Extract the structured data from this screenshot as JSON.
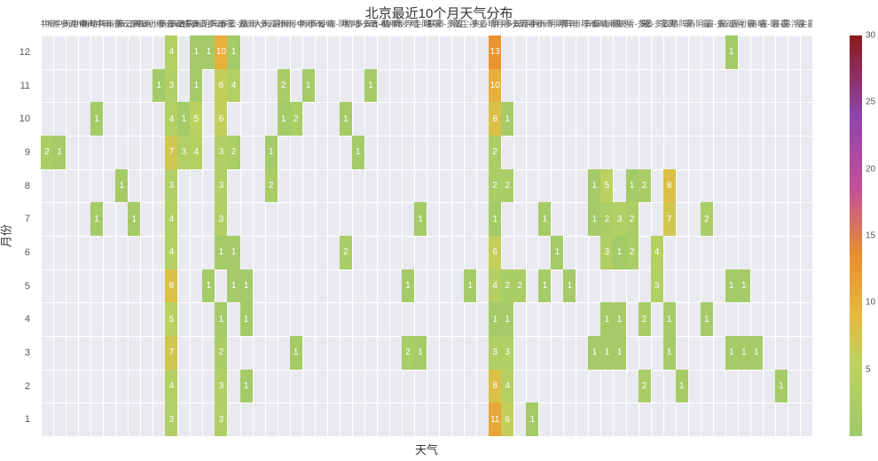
{
  "title": "北京最近10个月天气分布",
  "x_axis": {
    "label": "天气",
    "n_cols": 62,
    "categories": [
      "中雨",
      "中雨-多云",
      "中雨-小雨",
      "中雨-晴",
      "中雨-阵雨",
      "中雨-阴",
      "多云",
      "多云-中雨",
      "多云-小雨",
      "多云-小雨-多云",
      "多云-晴",
      "多云-暴雨",
      "多云-阴",
      "多云-阵雨",
      "多云-雾",
      "多云-霾",
      "大雨",
      "大雨-多云",
      "大雨-暴雨",
      "小雨",
      "小雨-中雨",
      "小雨-多云",
      "小雨-晴",
      "小雨-阴",
      "晴",
      "晴-多云",
      "晴-多云-晴",
      "晴-小雨",
      "晴-扬沙",
      "晴-浮尘",
      "晴-阴",
      "晴-雾",
      "暴雨-多云",
      "浮尘",
      "浮尘-多云",
      "浮尘-晴",
      "阴",
      "阴-多云",
      "阴-多云-阴",
      "阴-小雨",
      "阴-小雨-阴",
      "阴-晴",
      "阵雨",
      "阵雨-多云",
      "阵雨-晴",
      "阵雨-阴",
      "雨夹雪",
      "雨夹雪-多云",
      "雾",
      "雾-多云",
      "雾-晴",
      "雾-阵雨",
      "雾-阴",
      "霾",
      "霾-多云",
      "霾-小雪",
      "霾-小雨",
      "霾-晴",
      "霾-阴",
      "霾-雾",
      "霾-浮尘",
      "霾-霾"
    ]
  },
  "y_axis": {
    "label": "月份",
    "n_rows": 12,
    "row_labels": [
      "1",
      "2",
      "3",
      "4",
      "5",
      "6",
      "7",
      "8",
      "9",
      "10",
      "11",
      "12"
    ]
  },
  "colorbar": {
    "min": 0,
    "max": 30,
    "ticks": [
      5,
      10,
      15,
      20,
      25,
      30
    ],
    "stops": [
      {
        "t": 0.0,
        "color": "#a0c96a"
      },
      {
        "t": 0.18,
        "color": "#bcd35f"
      },
      {
        "t": 0.3,
        "color": "#e6b93e"
      },
      {
        "t": 0.45,
        "color": "#e98e2f"
      },
      {
        "t": 0.62,
        "color": "#c44e9a"
      },
      {
        "t": 0.8,
        "color": "#8e44ad"
      },
      {
        "t": 1.0,
        "color": "#8b1a1a"
      }
    ]
  },
  "colors": {
    "plot_bg": "#e9eaef",
    "grid": "#ffffff",
    "text": "#333333",
    "tick_text": "#555555",
    "cell_text": "#ffffff"
  },
  "fonts": {
    "title_size": 15,
    "axis_label_size": 13,
    "tick_size": 11,
    "xtick_size": 9,
    "cell_size": 10,
    "cb_tick_size": 10
  },
  "cells": [
    {
      "row": 0,
      "col": 10,
      "val": 3
    },
    {
      "row": 0,
      "col": 14,
      "val": 3
    },
    {
      "row": 0,
      "col": 36,
      "val": 11
    },
    {
      "row": 0,
      "col": 37,
      "val": 6
    },
    {
      "row": 0,
      "col": 39,
      "val": 1
    },
    {
      "row": 1,
      "col": 10,
      "val": 4
    },
    {
      "row": 1,
      "col": 14,
      "val": 3
    },
    {
      "row": 1,
      "col": 16,
      "val": 1
    },
    {
      "row": 1,
      "col": 36,
      "val": 8
    },
    {
      "row": 1,
      "col": 37,
      "val": 4
    },
    {
      "row": 1,
      "col": 48,
      "val": 2
    },
    {
      "row": 1,
      "col": 51,
      "val": 1
    },
    {
      "row": 1,
      "col": 59,
      "val": 1
    },
    {
      "row": 2,
      "col": 10,
      "val": 7
    },
    {
      "row": 2,
      "col": 14,
      "val": 2
    },
    {
      "row": 2,
      "col": 20,
      "val": 1
    },
    {
      "row": 2,
      "col": 29,
      "val": 2
    },
    {
      "row": 2,
      "col": 30,
      "val": 1
    },
    {
      "row": 2,
      "col": 36,
      "val": 3
    },
    {
      "row": 2,
      "col": 37,
      "val": 3
    },
    {
      "row": 2,
      "col": 44,
      "val": 1
    },
    {
      "row": 2,
      "col": 45,
      "val": 1
    },
    {
      "row": 2,
      "col": 46,
      "val": 1
    },
    {
      "row": 2,
      "col": 50,
      "val": 1
    },
    {
      "row": 2,
      "col": 55,
      "val": 1
    },
    {
      "row": 2,
      "col": 56,
      "val": 1
    },
    {
      "row": 2,
      "col": 57,
      "val": 1
    },
    {
      "row": 3,
      "col": 10,
      "val": 5
    },
    {
      "row": 3,
      "col": 14,
      "val": 1
    },
    {
      "row": 3,
      "col": 16,
      "val": 1
    },
    {
      "row": 3,
      "col": 36,
      "val": 1
    },
    {
      "row": 3,
      "col": 37,
      "val": 1
    },
    {
      "row": 3,
      "col": 45,
      "val": 1
    },
    {
      "row": 3,
      "col": 46,
      "val": 1
    },
    {
      "row": 3,
      "col": 48,
      "val": 2
    },
    {
      "row": 3,
      "col": 50,
      "val": 1
    },
    {
      "row": 3,
      "col": 53,
      "val": 1
    },
    {
      "row": 4,
      "col": 10,
      "val": 8
    },
    {
      "row": 4,
      "col": 13,
      "val": 1
    },
    {
      "row": 4,
      "col": 15,
      "val": 1
    },
    {
      "row": 4,
      "col": 16,
      "val": 1
    },
    {
      "row": 4,
      "col": 29,
      "val": 1
    },
    {
      "row": 4,
      "col": 34,
      "val": 1
    },
    {
      "row": 4,
      "col": 36,
      "val": 4
    },
    {
      "row": 4,
      "col": 37,
      "val": 2
    },
    {
      "row": 4,
      "col": 38,
      "val": 2
    },
    {
      "row": 4,
      "col": 40,
      "val": 1
    },
    {
      "row": 4,
      "col": 42,
      "val": 1
    },
    {
      "row": 4,
      "col": 49,
      "val": 3
    },
    {
      "row": 4,
      "col": 55,
      "val": 1
    },
    {
      "row": 4,
      "col": 56,
      "val": 1
    },
    {
      "row": 5,
      "col": 10,
      "val": 4
    },
    {
      "row": 5,
      "col": 14,
      "val": 1
    },
    {
      "row": 5,
      "col": 15,
      "val": 1
    },
    {
      "row": 5,
      "col": 24,
      "val": 2
    },
    {
      "row": 5,
      "col": 36,
      "val": 6
    },
    {
      "row": 5,
      "col": 41,
      "val": 1
    },
    {
      "row": 5,
      "col": 45,
      "val": 3
    },
    {
      "row": 5,
      "col": 46,
      "val": 1
    },
    {
      "row": 5,
      "col": 47,
      "val": 2
    },
    {
      "row": 5,
      "col": 49,
      "val": 4
    },
    {
      "row": 6,
      "col": 4,
      "val": 1
    },
    {
      "row": 6,
      "col": 7,
      "val": 1
    },
    {
      "row": 6,
      "col": 10,
      "val": 4
    },
    {
      "row": 6,
      "col": 14,
      "val": 3
    },
    {
      "row": 6,
      "col": 30,
      "val": 1
    },
    {
      "row": 6,
      "col": 36,
      "val": 1
    },
    {
      "row": 6,
      "col": 40,
      "val": 1
    },
    {
      "row": 6,
      "col": 44,
      "val": 1
    },
    {
      "row": 6,
      "col": 45,
      "val": 2
    },
    {
      "row": 6,
      "col": 46,
      "val": 3
    },
    {
      "row": 6,
      "col": 47,
      "val": 2
    },
    {
      "row": 6,
      "col": 50,
      "val": 7
    },
    {
      "row": 6,
      "col": 53,
      "val": 2
    },
    {
      "row": 7,
      "col": 6,
      "val": 1
    },
    {
      "row": 7,
      "col": 10,
      "val": 3
    },
    {
      "row": 7,
      "col": 14,
      "val": 3
    },
    {
      "row": 7,
      "col": 18,
      "val": 2
    },
    {
      "row": 7,
      "col": 36,
      "val": 2
    },
    {
      "row": 7,
      "col": 37,
      "val": 2
    },
    {
      "row": 7,
      "col": 44,
      "val": 1
    },
    {
      "row": 7,
      "col": 45,
      "val": 5
    },
    {
      "row": 7,
      "col": 47,
      "val": 1
    },
    {
      "row": 7,
      "col": 48,
      "val": 2
    },
    {
      "row": 7,
      "col": 50,
      "val": 8
    },
    {
      "row": 8,
      "col": 0,
      "val": 2
    },
    {
      "row": 8,
      "col": 1,
      "val": 1
    },
    {
      "row": 8,
      "col": 10,
      "val": 7
    },
    {
      "row": 8,
      "col": 11,
      "val": 3
    },
    {
      "row": 8,
      "col": 12,
      "val": 4
    },
    {
      "row": 8,
      "col": 14,
      "val": 3
    },
    {
      "row": 8,
      "col": 15,
      "val": 2
    },
    {
      "row": 8,
      "col": 18,
      "val": 1
    },
    {
      "row": 8,
      "col": 25,
      "val": 1
    },
    {
      "row": 8,
      "col": 36,
      "val": 2
    },
    {
      "row": 9,
      "col": 4,
      "val": 1
    },
    {
      "row": 9,
      "col": 10,
      "val": 4
    },
    {
      "row": 9,
      "col": 11,
      "val": 1
    },
    {
      "row": 9,
      "col": 12,
      "val": 5
    },
    {
      "row": 9,
      "col": 14,
      "val": 6
    },
    {
      "row": 9,
      "col": 19,
      "val": 1
    },
    {
      "row": 9,
      "col": 20,
      "val": 2
    },
    {
      "row": 9,
      "col": 24,
      "val": 1
    },
    {
      "row": 9,
      "col": 36,
      "val": 8
    },
    {
      "row": 9,
      "col": 37,
      "val": 1
    },
    {
      "row": 10,
      "col": 9,
      "val": 1
    },
    {
      "row": 10,
      "col": 10,
      "val": 3
    },
    {
      "row": 10,
      "col": 12,
      "val": 1
    },
    {
      "row": 10,
      "col": 14,
      "val": 6
    },
    {
      "row": 10,
      "col": 15,
      "val": 4
    },
    {
      "row": 10,
      "col": 19,
      "val": 2
    },
    {
      "row": 10,
      "col": 21,
      "val": 1
    },
    {
      "row": 10,
      "col": 26,
      "val": 1
    },
    {
      "row": 10,
      "col": 36,
      "val": 10
    },
    {
      "row": 11,
      "col": 10,
      "val": 4
    },
    {
      "row": 11,
      "col": 12,
      "val": 1
    },
    {
      "row": 11,
      "col": 13,
      "val": 1
    },
    {
      "row": 11,
      "col": 14,
      "val": 10
    },
    {
      "row": 11,
      "col": 15,
      "val": 1
    },
    {
      "row": 11,
      "col": 36,
      "val": 13
    },
    {
      "row": 11,
      "col": 55,
      "val": 1
    }
  ]
}
